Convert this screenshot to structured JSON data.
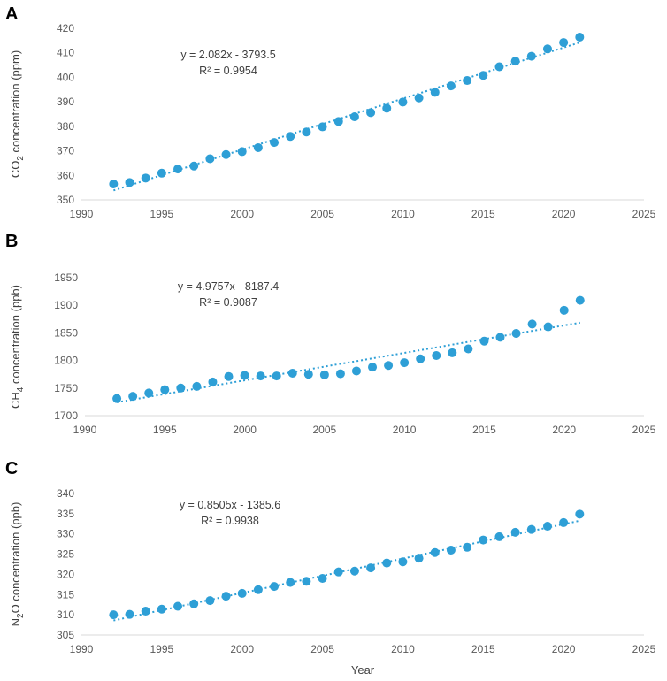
{
  "chart_data": [
    {
      "type": "scatter",
      "panel": "A",
      "ylabel_main": "CO",
      "ylabel_sub": "2",
      "ylabel_tail": " concentration (ppm)",
      "xlabel": "",
      "xlim": [
        1990,
        2025
      ],
      "ylim": [
        350,
        420
      ],
      "xticks": [
        1990,
        1995,
        2000,
        2005,
        2010,
        2015,
        2020,
        2025
      ],
      "yticks": [
        350,
        360,
        370,
        380,
        390,
        400,
        410,
        420
      ],
      "x": [
        1992,
        1993,
        1994,
        1995,
        1996,
        1997,
        1998,
        1999,
        2000,
        2001,
        2002,
        2003,
        2004,
        2005,
        2006,
        2007,
        2008,
        2009,
        2010,
        2011,
        2012,
        2013,
        2014,
        2015,
        2016,
        2017,
        2018,
        2019,
        2020,
        2021
      ],
      "y": [
        356.5,
        357.1,
        358.9,
        360.9,
        362.6,
        363.8,
        366.8,
        368.5,
        369.7,
        371.3,
        373.4,
        375.9,
        377.7,
        379.8,
        382.0,
        383.9,
        385.6,
        387.4,
        389.9,
        391.6,
        393.9,
        396.5,
        398.7,
        400.8,
        404.3,
        406.6,
        408.6,
        411.6,
        414.2,
        416.4
      ],
      "trend": {
        "slope": 2.082,
        "intercept": -3793.5,
        "label_line1": "y = 2.082x - 3793.5",
        "label_line2": "R² = 0.9954"
      }
    },
    {
      "type": "scatter",
      "panel": "B",
      "ylabel_main": "CH",
      "ylabel_sub": "4",
      "ylabel_tail": " concentration (ppb)",
      "xlabel": "",
      "xlim": [
        1990,
        2025
      ],
      "ylim": [
        1700,
        1950
      ],
      "xticks": [
        1990,
        1995,
        2000,
        2005,
        2010,
        2015,
        2020,
        2025
      ],
      "yticks": [
        1700,
        1750,
        1800,
        1850,
        1900,
        1950
      ],
      "x": [
        1992,
        1993,
        1994,
        1995,
        1996,
        1997,
        1998,
        1999,
        2000,
        2001,
        2002,
        2003,
        2004,
        2005,
        2006,
        2007,
        2008,
        2009,
        2010,
        2011,
        2012,
        2013,
        2014,
        2015,
        2016,
        2017,
        2018,
        2019,
        2020,
        2021
      ],
      "y": [
        1731,
        1735,
        1741,
        1747,
        1750,
        1753,
        1761,
        1771,
        1773,
        1772,
        1772,
        1777,
        1775,
        1774,
        1776,
        1781,
        1788,
        1791,
        1796,
        1803,
        1809,
        1814,
        1821,
        1835,
        1842,
        1849,
        1866,
        1861,
        1891,
        1909
      ],
      "trend": {
        "slope": 4.9757,
        "intercept": -8187.4,
        "label_line1": "y = 4.9757x - 8187.4",
        "label_line2": "R² = 0.9087"
      }
    },
    {
      "type": "scatter",
      "panel": "C",
      "ylabel_main": "N",
      "ylabel_sub": "2",
      "ylabel_tail": "O concentration (ppb)",
      "xlabel": "Year",
      "xlim": [
        1990,
        2025
      ],
      "ylim": [
        305,
        340
      ],
      "xticks": [
        1990,
        1995,
        2000,
        2005,
        2010,
        2015,
        2020,
        2025
      ],
      "yticks": [
        305,
        310,
        315,
        320,
        325,
        330,
        335,
        340
      ],
      "x": [
        1992,
        1993,
        1994,
        1995,
        1996,
        1997,
        1998,
        1999,
        2000,
        2001,
        2002,
        2003,
        2004,
        2005,
        2006,
        2007,
        2008,
        2009,
        2010,
        2011,
        2012,
        2013,
        2014,
        2015,
        2016,
        2017,
        2018,
        2019,
        2020,
        2021
      ],
      "y": [
        310.0,
        310.1,
        310.9,
        311.4,
        312.1,
        312.7,
        313.5,
        314.6,
        315.3,
        316.2,
        317.0,
        318.0,
        318.3,
        319.0,
        320.6,
        320.8,
        321.6,
        322.8,
        323.1,
        324.0,
        325.4,
        326.0,
        326.7,
        328.5,
        329.3,
        330.4,
        331.1,
        331.9,
        332.8,
        334.9
      ],
      "trend": {
        "slope": 0.8505,
        "intercept": -1385.6,
        "label_line1": "y = 0.8505x - 1385.6",
        "label_line2": "R² = 0.9938"
      }
    }
  ]
}
